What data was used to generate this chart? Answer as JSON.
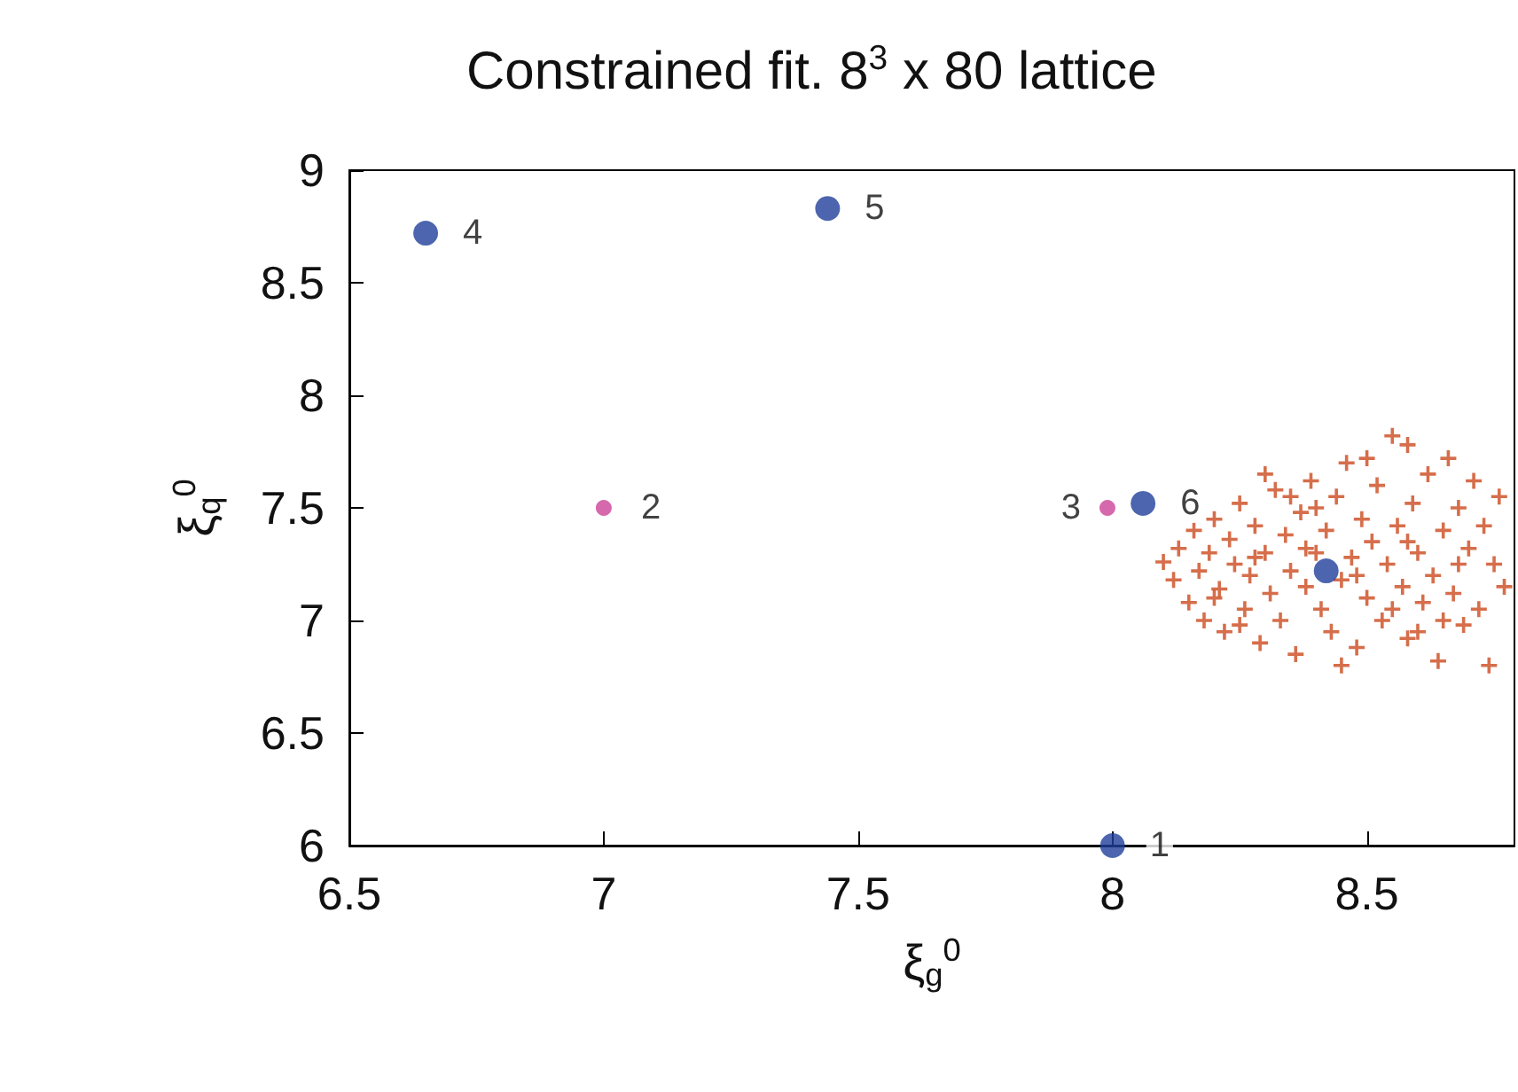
{
  "chart_data": {
    "type": "scatter",
    "title": "Constrained fit. 8$^{3}$ x 80 lattice",
    "xlabel": "ξ$_{g}$$^{0}$",
    "ylabel": "ξ$_{q}$$^{0}$",
    "xlim": [
      6.5,
      8.79
    ],
    "xticks": [
      6.5,
      7,
      7.5,
      8,
      8.5
    ],
    "ylim": [
      6,
      9
    ],
    "yticks": [
      6,
      6.5,
      7,
      7.5,
      8,
      8.5,
      9
    ],
    "grid": false,
    "series": [
      {
        "color": "#cc4a1e",
        "marker": "cross",
        "x": [
          8.1,
          8.12,
          8.13,
          8.15,
          8.16,
          8.17,
          8.18,
          8.19,
          8.2,
          8.21,
          8.22,
          8.23,
          8.24,
          8.25,
          8.26,
          8.27,
          8.28,
          8.29,
          8.3,
          8.31,
          8.32,
          8.33,
          8.34,
          8.35,
          8.36,
          8.37,
          8.38,
          8.39,
          8.4,
          8.41,
          8.42,
          8.43,
          8.44,
          8.45,
          8.46,
          8.47,
          8.48,
          8.49,
          8.5,
          8.51,
          8.52,
          8.53,
          8.54,
          8.55,
          8.56,
          8.57,
          8.58,
          8.59,
          8.6,
          8.61,
          8.62,
          8.63,
          8.64,
          8.65,
          8.66,
          8.67,
          8.68,
          8.69,
          8.7,
          8.71,
          8.72,
          8.73,
          8.74,
          8.75,
          8.76,
          8.77,
          8.3,
          8.35,
          8.25,
          8.45,
          8.58,
          8.5,
          8.2,
          8.4,
          8.6,
          8.65,
          8.55,
          8.28,
          8.38,
          8.48,
          8.58,
          8.68
        ],
        "values": [
          7.26,
          7.18,
          7.32,
          7.08,
          7.4,
          7.22,
          7.0,
          7.3,
          7.45,
          7.14,
          6.95,
          7.36,
          7.25,
          7.52,
          7.05,
          7.2,
          7.42,
          6.9,
          7.3,
          7.12,
          7.58,
          7.0,
          7.38,
          7.22,
          6.85,
          7.48,
          7.15,
          7.62,
          7.3,
          7.05,
          7.4,
          6.95,
          7.55,
          7.18,
          7.7,
          7.28,
          6.88,
          7.45,
          7.1,
          7.35,
          7.6,
          7.0,
          7.25,
          7.82,
          7.42,
          7.15,
          6.92,
          7.52,
          7.3,
          7.08,
          7.65,
          7.2,
          6.82,
          7.4,
          7.72,
          7.12,
          7.5,
          6.98,
          7.32,
          7.62,
          7.05,
          7.42,
          6.8,
          7.25,
          7.55,
          7.15,
          7.65,
          7.55,
          6.98,
          6.8,
          7.78,
          7.72,
          7.1,
          7.5,
          6.95,
          7.0,
          7.05,
          7.28,
          7.32,
          7.2,
          7.35,
          7.25
        ]
      },
      {
        "color": "#1f3f9a",
        "marker": "circle",
        "x": [
          8.0,
          6.65,
          7.44,
          8.06,
          8.42
        ],
        "values": [
          6.0,
          8.72,
          8.83,
          7.52,
          7.22
        ]
      },
      {
        "color": "#cc4499",
        "marker": "circle",
        "x": [
          7.0,
          7.99
        ],
        "values": [
          7.5,
          7.5
        ]
      }
    ],
    "annotations": [
      {
        "text": "1",
        "x": 8.0,
        "y": 6.0
      },
      {
        "text": "2",
        "x": 7.0,
        "y": 7.5
      },
      {
        "text": "3",
        "x": 7.99,
        "y": 7.5
      },
      {
        "text": "4",
        "x": 6.65,
        "y": 8.72
      },
      {
        "text": "5",
        "x": 7.44,
        "y": 8.83
      },
      {
        "text": "6",
        "x": 8.06,
        "y": 7.52
      }
    ]
  }
}
